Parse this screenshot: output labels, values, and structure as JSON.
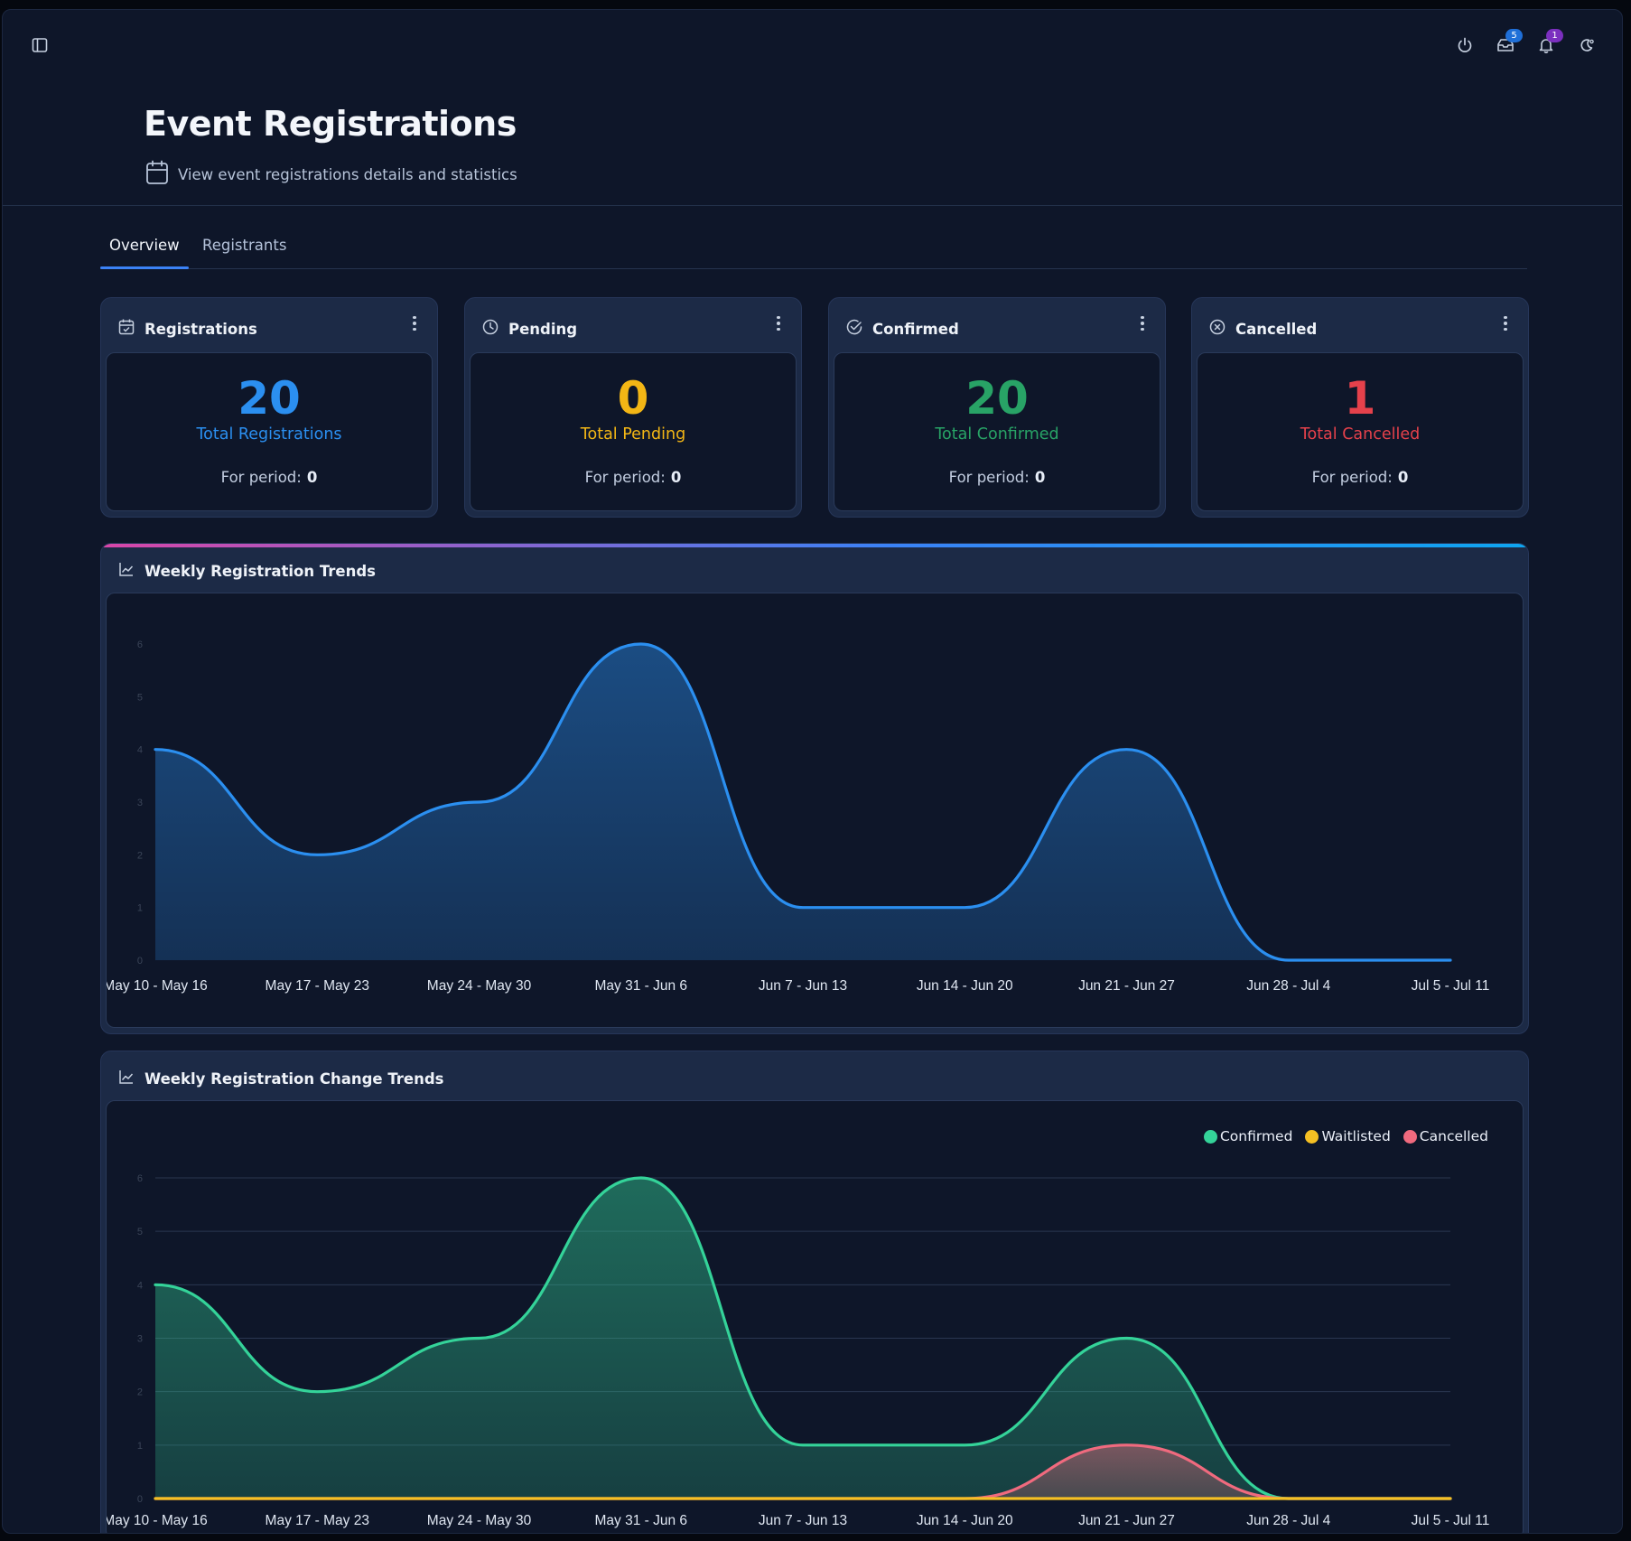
{
  "header": {
    "title": "Event Registrations",
    "subtitle": "View event registrations details and statistics"
  },
  "topbar": {
    "icons": [
      "sidebar-toggle-icon",
      "power-icon",
      "inbox-icon",
      "bell-icon",
      "theme-toggle-icon"
    ],
    "inbox_badge": "5",
    "notifications_badge": "1"
  },
  "tabs": [
    {
      "label": "Overview",
      "active": true
    },
    {
      "label": "Registrants",
      "active": false
    }
  ],
  "stats": [
    {
      "title": "Registrations",
      "icon": "calendar-check-icon",
      "value": "20",
      "label": "Total Registrations",
      "period_label": "For period:",
      "period_value": "0",
      "color": "#2b8ff0"
    },
    {
      "title": "Pending",
      "icon": "clock-icon",
      "value": "0",
      "label": "Total Pending",
      "period_label": "For period:",
      "period_value": "0",
      "color": "#f3b615"
    },
    {
      "title": "Confirmed",
      "icon": "check-circle-icon",
      "value": "20",
      "label": "Total Confirmed",
      "period_label": "For period:",
      "period_value": "0",
      "color": "#28a366"
    },
    {
      "title": "Cancelled",
      "icon": "x-circle-icon",
      "value": "1",
      "label": "Total Cancelled",
      "period_label": "For period:",
      "period_value": "0",
      "color": "#e5414b"
    }
  ],
  "chart_data": [
    {
      "type": "area",
      "title": "Weekly Registration Trends",
      "categories": [
        "May 10 - May 16",
        "May 17 - May 23",
        "May 24 - May 30",
        "May 31 - Jun 6",
        "Jun 7 - Jun 13",
        "Jun 14 - Jun 20",
        "Jun 21 - Jun 27",
        "Jun 28 - Jul 4",
        "Jul 5 - Jul 11"
      ],
      "series": [
        {
          "values": [
            4,
            2,
            3,
            6,
            1,
            1,
            4,
            0,
            0
          ],
          "color": "#2b8ff0"
        }
      ],
      "ylim": [
        0,
        6
      ],
      "yticks": [
        0,
        1,
        2,
        3,
        4,
        5,
        6
      ],
      "grid": false,
      "legend": "none"
    },
    {
      "type": "area",
      "title": "Weekly Registration Change Trends",
      "categories": [
        "May 10 - May 16",
        "May 17 - May 23",
        "May 24 - May 30",
        "May 31 - Jun 6",
        "Jun 7 - Jun 13",
        "Jun 14 - Jun 20",
        "Jun 21 - Jun 27",
        "Jun 28 - Jul 4",
        "Jul 5 - Jul 11"
      ],
      "series": [
        {
          "name": "Confirmed",
          "values": [
            4,
            2,
            3,
            6,
            1,
            1,
            3,
            0,
            0
          ],
          "color": "#34d399"
        },
        {
          "name": "Waitlisted",
          "values": [
            0,
            0,
            0,
            0,
            0,
            0,
            0,
            0,
            0
          ],
          "color": "#f5c023"
        },
        {
          "name": "Cancelled",
          "values": [
            0,
            0,
            0,
            0,
            0,
            0,
            1,
            0,
            0
          ],
          "color": "#f06a7e"
        }
      ],
      "ylim": [
        0,
        6
      ],
      "yticks": [
        0,
        1,
        2,
        3,
        4,
        5,
        6
      ],
      "grid": true,
      "legend": "top-right"
    }
  ]
}
